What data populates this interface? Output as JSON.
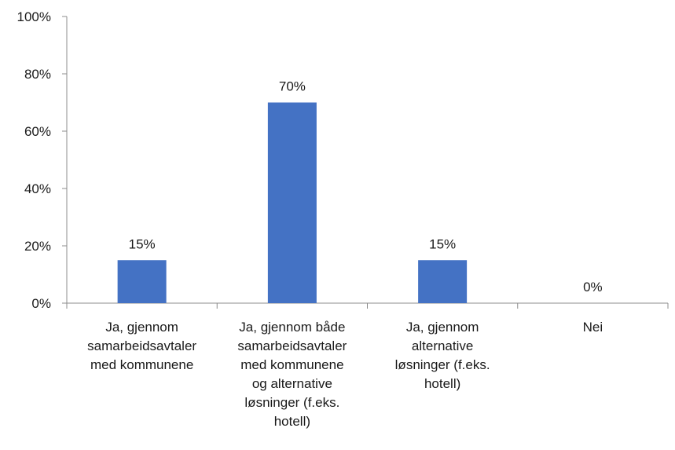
{
  "chart_data": {
    "type": "bar",
    "categories": [
      "Ja, gjennom samarbeidsavtaler med kommunene",
      "Ja, gjennom både samarbeidsavtaler med kommunene og alternative løsninger (f.eks. hotell)",
      "Ja, gjennom alternative løsninger (f.eks. hotell)",
      "Nei"
    ],
    "category_lines": [
      [
        "Ja, gjennom",
        "samarbeidsavtaler",
        "med kommunene"
      ],
      [
        "Ja, gjennom både",
        "samarbeidsavtaler",
        "med kommunene",
        "og alternative",
        "løsninger (f.eks.",
        "hotell)"
      ],
      [
        "Ja, gjennom",
        "alternative",
        "løsninger (f.eks.",
        "hotell)"
      ],
      [
        "Nei"
      ]
    ],
    "values": [
      15,
      70,
      15,
      0
    ],
    "data_labels": [
      "15%",
      "70%",
      "15%",
      "0%"
    ],
    "ylim": [
      0,
      100
    ],
    "yticks": [
      0,
      20,
      40,
      60,
      80,
      100
    ],
    "ytick_labels": [
      "0%",
      "20%",
      "40%",
      "60%",
      "80%",
      "100%"
    ],
    "grid": false,
    "legend": "none",
    "bar_color": "#4472c4",
    "axis_color": "#8c8c8c"
  }
}
